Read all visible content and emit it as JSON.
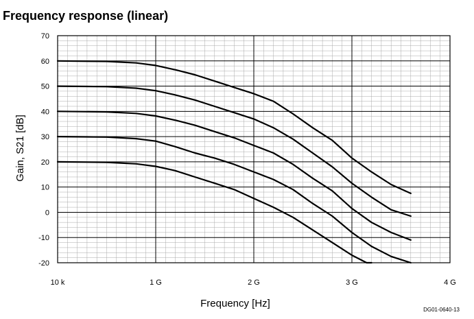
{
  "chart_data": {
    "type": "line",
    "title": "Frequency response (linear)",
    "xlabel": "Frequency [Hz]",
    "ylabel": "Gain, S21 [dB]",
    "xlim": [
      0,
      4
    ],
    "ylim": [
      -20,
      70
    ],
    "x_ticks": [
      {
        "value": 0,
        "label": "10 k"
      },
      {
        "value": 1,
        "label": "1 G"
      },
      {
        "value": 2,
        "label": "2 G"
      },
      {
        "value": 3,
        "label": "3 G"
      },
      {
        "value": 4,
        "label": "4 G"
      }
    ],
    "y_ticks": [
      -20,
      -10,
      0,
      10,
      20,
      30,
      40,
      50,
      60,
      70
    ],
    "grid": true,
    "figure_code": "DG01-0640-13",
    "series": [
      {
        "x": [
          0,
          0.5,
          0.8,
          1.0,
          1.2,
          1.4,
          1.6,
          1.8,
          2.0,
          2.2,
          2.4,
          2.6,
          2.8,
          3.0,
          3.2,
          3.4,
          3.6
        ],
        "values": [
          60,
          59.8,
          59.2,
          58.2,
          56.5,
          54.5,
          52,
          49.5,
          47,
          44,
          39,
          33.5,
          28.5,
          21.5,
          16,
          11,
          7.5
        ]
      },
      {
        "x": [
          0,
          0.5,
          0.8,
          1.0,
          1.2,
          1.4,
          1.6,
          1.8,
          2.0,
          2.2,
          2.4,
          2.6,
          2.8,
          3.0,
          3.2,
          3.4,
          3.6
        ],
        "values": [
          50,
          49.8,
          49.2,
          48.2,
          46.5,
          44.5,
          42,
          39.5,
          37,
          33.5,
          29,
          23.5,
          18,
          11.5,
          6,
          1,
          -1.5
        ]
      },
      {
        "x": [
          0,
          0.5,
          0.8,
          1.0,
          1.2,
          1.4,
          1.6,
          1.8,
          2.0,
          2.2,
          2.4,
          2.6,
          2.8,
          3.0,
          3.2,
          3.4,
          3.6
        ],
        "values": [
          40,
          39.8,
          39.2,
          38.2,
          36.5,
          34.5,
          32,
          29.5,
          26.5,
          23.5,
          19,
          13.5,
          8.5,
          1.5,
          -4,
          -8,
          -11
        ]
      },
      {
        "x": [
          0,
          0.5,
          0.8,
          1.0,
          1.2,
          1.4,
          1.6,
          1.8,
          2.0,
          2.2,
          2.4,
          2.6,
          2.8,
          3.0,
          3.2,
          3.4,
          3.6
        ],
        "values": [
          30,
          29.8,
          29.2,
          28.2,
          26,
          23.5,
          21.5,
          19,
          16,
          13,
          9,
          3.5,
          -1.5,
          -8,
          -13.5,
          -17.5,
          -20
        ]
      },
      {
        "x": [
          0,
          0.5,
          0.8,
          1.0,
          1.2,
          1.4,
          1.6,
          1.8,
          2.0,
          2.2,
          2.4,
          2.6,
          2.8,
          3.0,
          3.15,
          3.2
        ],
        "values": [
          20,
          19.8,
          19.2,
          18.2,
          16.5,
          14,
          11.5,
          9,
          5.5,
          2,
          -2,
          -7,
          -12,
          -17,
          -20,
          -20
        ]
      }
    ]
  }
}
